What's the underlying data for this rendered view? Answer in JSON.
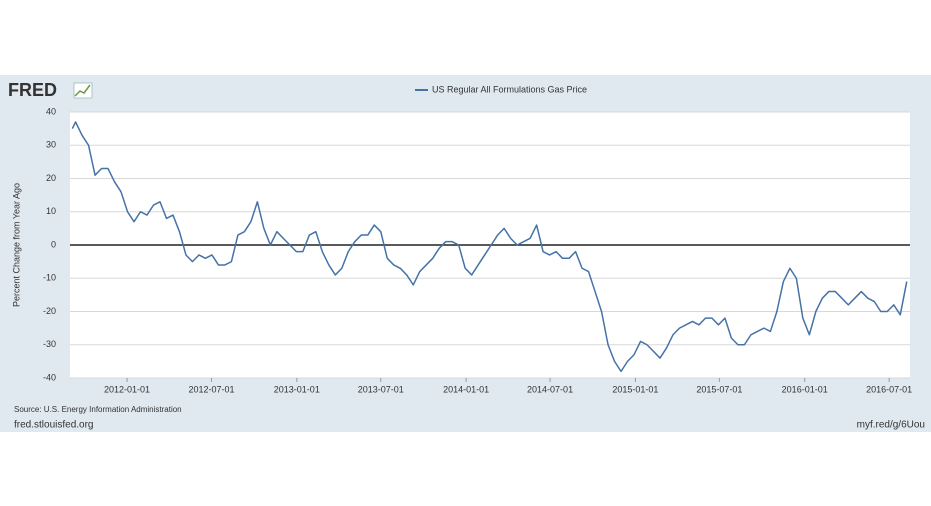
{
  "brand": "FRED",
  "footer": {
    "source": "Source: U.S. Energy Information Administration",
    "site": "fred.stlouisfed.org",
    "link": "myf.red/g/6Uou"
  },
  "chart_data": {
    "type": "line",
    "ylabel": "Percent Change from Year Ago",
    "ylim": [
      -40,
      40
    ],
    "yticks": [
      -40,
      -30,
      -20,
      -10,
      0,
      10,
      20,
      30,
      40
    ],
    "grid": true,
    "zero_line": true,
    "xlim": [
      "2011-08-31",
      "2016-08-15"
    ],
    "xticks": [
      "2012-01-01",
      "2012-07-01",
      "2013-01-01",
      "2013-07-01",
      "2014-01-01",
      "2014-07-01",
      "2015-01-01",
      "2015-07-01",
      "2016-01-01",
      "2016-07-01"
    ],
    "legend": "top",
    "x": [
      "2011-09-05",
      "2011-09-12",
      "2011-09-26",
      "2011-10-10",
      "2011-10-24",
      "2011-11-07",
      "2011-11-21",
      "2011-12-05",
      "2011-12-19",
      "2012-01-02",
      "2012-01-16",
      "2012-01-30",
      "2012-02-13",
      "2012-02-27",
      "2012-03-12",
      "2012-03-26",
      "2012-04-09",
      "2012-04-23",
      "2012-05-07",
      "2012-05-21",
      "2012-06-04",
      "2012-06-18",
      "2012-07-02",
      "2012-07-16",
      "2012-07-30",
      "2012-08-13",
      "2012-08-27",
      "2012-09-10",
      "2012-09-24",
      "2012-10-08",
      "2012-10-22",
      "2012-11-05",
      "2012-11-19",
      "2012-12-03",
      "2012-12-17",
      "2012-12-31",
      "2013-01-14",
      "2013-01-28",
      "2013-02-11",
      "2013-02-25",
      "2013-03-11",
      "2013-03-25",
      "2013-04-08",
      "2013-04-22",
      "2013-05-06",
      "2013-05-20",
      "2013-06-03",
      "2013-06-17",
      "2013-07-01",
      "2013-07-15",
      "2013-07-29",
      "2013-08-12",
      "2013-08-26",
      "2013-09-09",
      "2013-09-23",
      "2013-10-07",
      "2013-10-21",
      "2013-11-04",
      "2013-11-18",
      "2013-12-02",
      "2013-12-16",
      "2013-12-30",
      "2014-01-13",
      "2014-01-27",
      "2014-02-10",
      "2014-02-24",
      "2014-03-10",
      "2014-03-24",
      "2014-04-07",
      "2014-04-21",
      "2014-05-05",
      "2014-05-19",
      "2014-06-02",
      "2014-06-16",
      "2014-06-30",
      "2014-07-14",
      "2014-07-28",
      "2014-08-11",
      "2014-08-25",
      "2014-09-08",
      "2014-09-22",
      "2014-10-06",
      "2014-10-20",
      "2014-11-03",
      "2014-11-17",
      "2014-12-01",
      "2014-12-15",
      "2014-12-29",
      "2015-01-12",
      "2015-01-26",
      "2015-02-09",
      "2015-02-23",
      "2015-03-09",
      "2015-03-23",
      "2015-04-06",
      "2015-04-20",
      "2015-05-04",
      "2015-05-18",
      "2015-06-01",
      "2015-06-15",
      "2015-06-29",
      "2015-07-13",
      "2015-07-27",
      "2015-08-10",
      "2015-08-24",
      "2015-09-07",
      "2015-09-21",
      "2015-10-05",
      "2015-10-19",
      "2015-11-02",
      "2015-11-16",
      "2015-11-30",
      "2015-12-14",
      "2015-12-28",
      "2016-01-11",
      "2016-01-25",
      "2016-02-08",
      "2016-02-22",
      "2016-03-07",
      "2016-03-21",
      "2016-04-04",
      "2016-04-18",
      "2016-05-02",
      "2016-05-16",
      "2016-05-30",
      "2016-06-13",
      "2016-06-27",
      "2016-07-11",
      "2016-07-25",
      "2016-08-08"
    ],
    "series": [
      {
        "name": "US Regular All Formulations Gas Price",
        "color": "#4572a7",
        "values": [
          35,
          37,
          33,
          30,
          21,
          23,
          23,
          19,
          16,
          10,
          7,
          10,
          9,
          12,
          13,
          8,
          9,
          4,
          -3,
          -5,
          -3,
          -4,
          -3,
          -6,
          -6,
          -5,
          3,
          4,
          7,
          13,
          5,
          0,
          4,
          2,
          0,
          -2,
          -2,
          3,
          4,
          -2,
          -6,
          -9,
          -7,
          -2,
          1,
          3,
          3,
          6,
          4,
          -4,
          -6,
          -7,
          -9,
          -12,
          -8,
          -6,
          -4,
          -1,
          1,
          1,
          0,
          -7,
          -9,
          -6,
          -3,
          0,
          3,
          5,
          2,
          0,
          1,
          2,
          6,
          -2,
          -3,
          -2,
          -4,
          -4,
          -2,
          -7,
          -8,
          -14,
          -20,
          -30,
          -35,
          -38,
          -35,
          -33,
          -29,
          -30,
          -32,
          -34,
          -31,
          -27,
          -25,
          -24,
          -23,
          -24,
          -22,
          -22,
          -24,
          -22,
          -28,
          -30,
          -30,
          -27,
          -26,
          -25,
          -26,
          -20,
          -11,
          -7,
          -10,
          -22,
          -27,
          -20,
          -16,
          -14,
          -14,
          -16,
          -18,
          -16,
          -14,
          -16,
          -17,
          -20,
          -20,
          -18,
          -21,
          -11
        ]
      }
    ]
  }
}
